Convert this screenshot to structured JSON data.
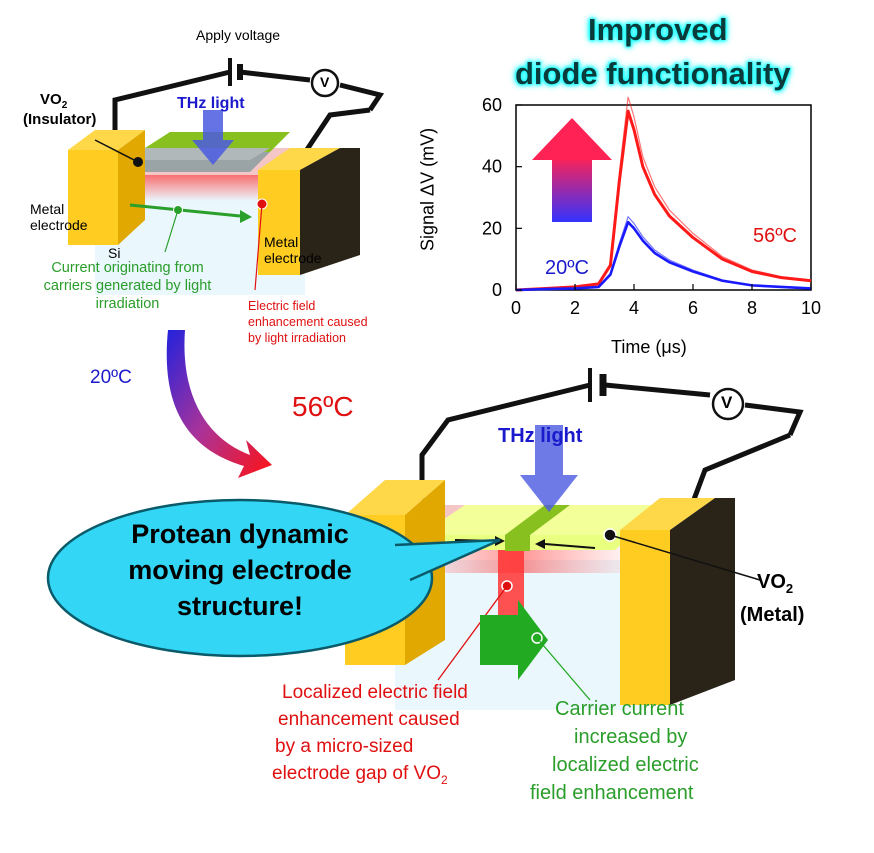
{
  "headline": {
    "line1": "Improved",
    "line2": "diode functionality"
  },
  "top_device": {
    "apply_voltage": "Apply voltage",
    "voltmeter": "V",
    "vo2_label": "VO",
    "vo2_sub": "2",
    "vo2_state": "(Insulator)",
    "thz": "THz light",
    "metal_left_1": "Metal",
    "metal_left_2": "electrode",
    "si": "Si",
    "metal_right_1": "Metal",
    "metal_right_2": "electrode",
    "current_note_1": "Current originating from",
    "current_note_2": "carriers generated by light",
    "current_note_3": "irradiation",
    "field_note_1": "Electric field",
    "field_note_2": "enhancement caused",
    "field_note_3": "by light irradiation"
  },
  "temps": {
    "low": "20ºC",
    "high": "56ºC"
  },
  "bottom_device": {
    "voltmeter": "V",
    "thz": "THz light",
    "callout_1": "Protean dynamic",
    "callout_2": "moving electrode",
    "callout_3": "structure!",
    "vo2_label": "VO",
    "vo2_sub": "2",
    "vo2_state": "(Metal)",
    "red_note_1": "Localized electric field",
    "red_note_2": "enhancement caused",
    "red_note_3": "by a micro-sized",
    "red_note_4": "electrode gap of VO",
    "red_note_sub": "2",
    "green_note_1": "Carrier current",
    "green_note_2": "increased by",
    "green_note_3": "localized electric",
    "green_note_4": "field enhancement"
  },
  "colors": {
    "metal": "#ffcc22",
    "metal_dark": "#2a2418",
    "vo2_green": "#88c020",
    "thz_blue": "#4a5be0",
    "red": "#e01010",
    "series_56": "#ff1a1a",
    "series_20": "#1a1aff"
  },
  "chart_data": {
    "type": "line",
    "xlabel": "Time (μs)",
    "ylabel": "Signal ΔV (mV)",
    "xlim": [
      0,
      10
    ],
    "ylim": [
      0,
      60
    ],
    "xticks": [
      0,
      2,
      4,
      6,
      8,
      10
    ],
    "yticks": [
      0,
      20,
      40,
      60
    ],
    "series": [
      {
        "name": "56ºC",
        "color": "#ff1a1a",
        "x": [
          0,
          1,
          2,
          2.8,
          3.2,
          3.5,
          3.8,
          4.0,
          4.3,
          4.7,
          5.2,
          6.0,
          7.0,
          8.0,
          9.0,
          10.0
        ],
        "y": [
          0,
          0.5,
          1,
          2,
          8,
          35,
          58,
          52,
          40,
          31,
          24,
          17,
          10,
          6,
          4,
          3
        ]
      },
      {
        "name": "20ºC",
        "color": "#1a1aff",
        "x": [
          0,
          1,
          2,
          2.8,
          3.2,
          3.5,
          3.8,
          4.0,
          4.3,
          4.7,
          5.2,
          6.0,
          7.0,
          8.0,
          9.0,
          10.0
        ],
        "y": [
          0,
          0.3,
          0.5,
          1,
          5,
          14,
          22,
          20,
          16,
          12,
          9,
          6,
          3,
          1.5,
          1,
          0.5
        ]
      }
    ]
  }
}
